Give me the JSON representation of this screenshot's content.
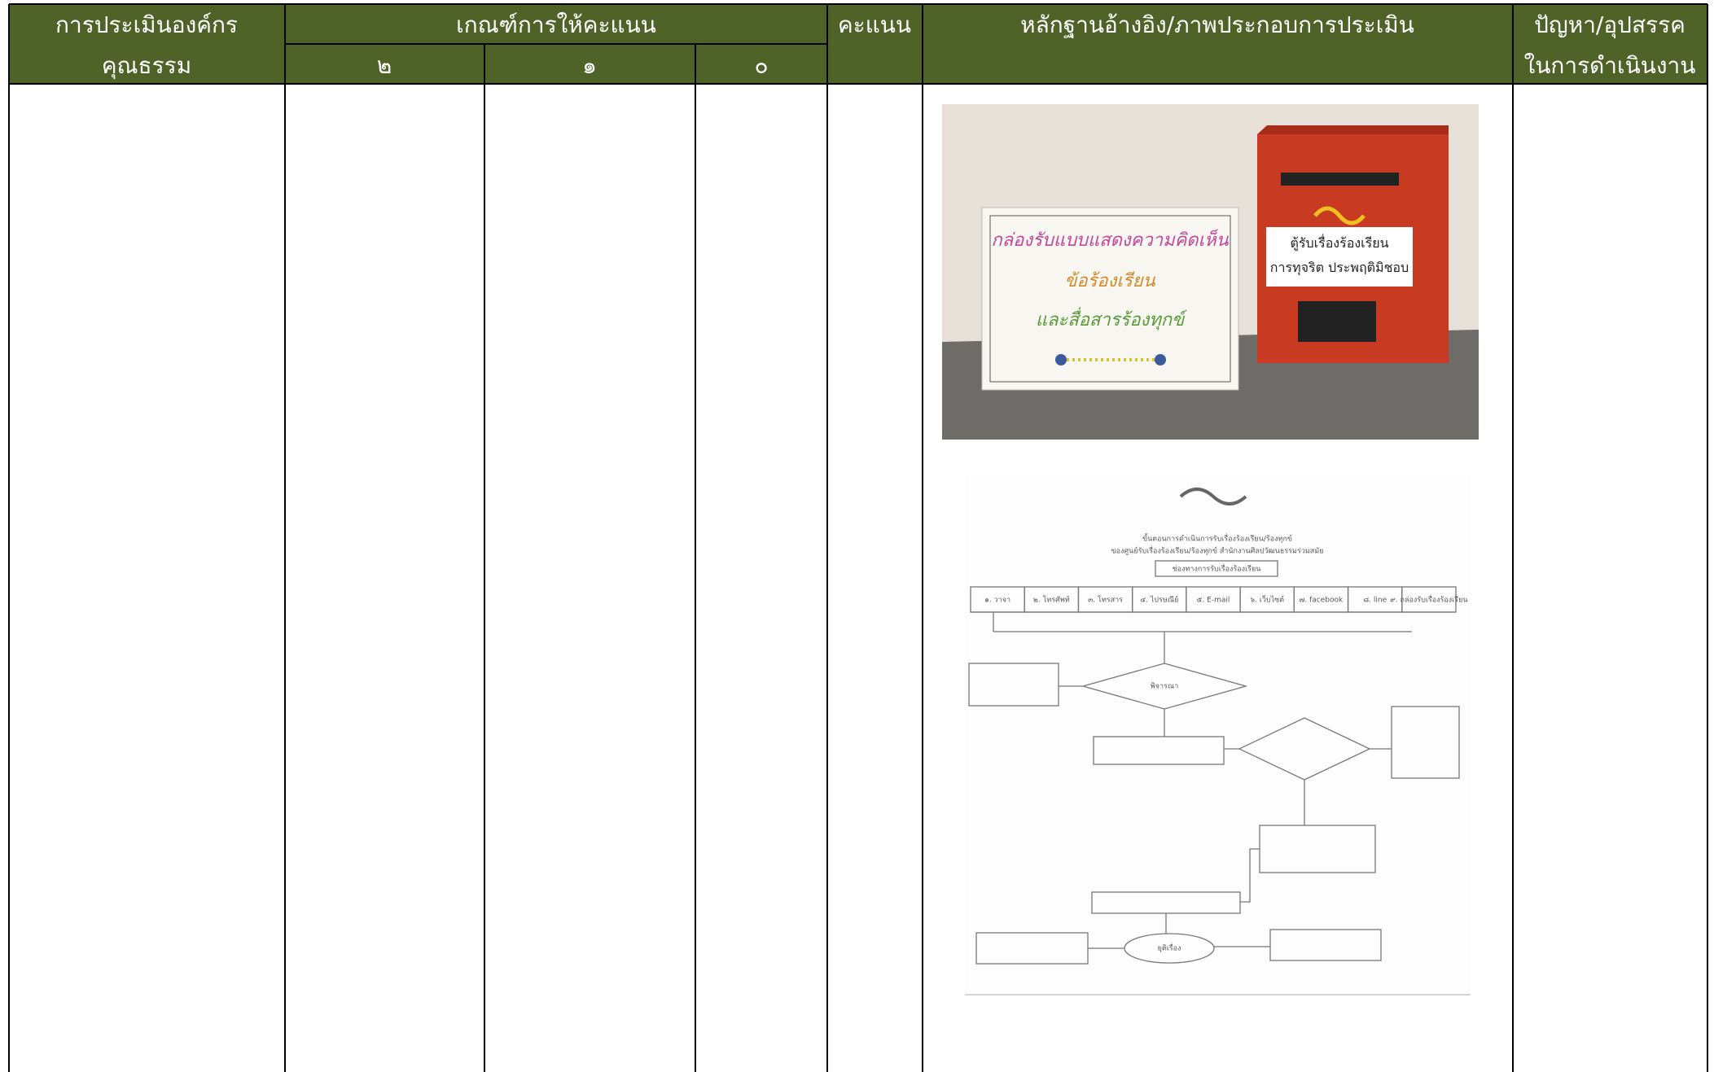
{
  "table": {
    "header": {
      "assessment": [
        "การประเมินองค์กร",
        "คุณธรรม"
      ],
      "criteria": "เกณฑ์การให้คะแนน",
      "levels": [
        "๒",
        "๑",
        "๐"
      ],
      "score": "คะแนน",
      "evidence": "หลักฐานอ้างอิง/ภาพประกอบการประเมิน",
      "problems": [
        "ปัญหา/อุปสรรค",
        "ในการดำเนินงาน"
      ]
    }
  },
  "evidence": {
    "photo": {
      "box_sign": [
        "กล่องรับแบบแสดงความคิดเห็น",
        "ข้อร้องเรียน",
        "และสื่อสารร้องทุกข์"
      ],
      "mailbox_sign": [
        "ตู้รับเรื่องร้องเรียน",
        "การทุจริต ประพฤติมิชอบ"
      ]
    },
    "flowchart": {
      "title": [
        "ขั้นตอนการดำเนินการรับเรื่องร้องเรียน/ร้องทุกข์",
        "ของศูนย์รับเรื่องร้องเรียน/ร้องทุกข์ สำนักงานศิลปวัฒนธรรมร่วมสมัย"
      ],
      "channels_header": "ช่องทางการรับเรื่องร้องเรียน",
      "channels": [
        "๑. วาจา",
        "๒. โทรศัพท์",
        "๓. โทรสาร",
        "๔. ไปรษณีย์",
        "๕. E-mail",
        "๖. เว็บไซต์",
        "๗. facebook",
        "๘. line",
        "๙. กล่องรับเรื่องร้องเรียน"
      ],
      "decision": "พิจารณา",
      "end": "ยุติเรื่อง"
    }
  }
}
